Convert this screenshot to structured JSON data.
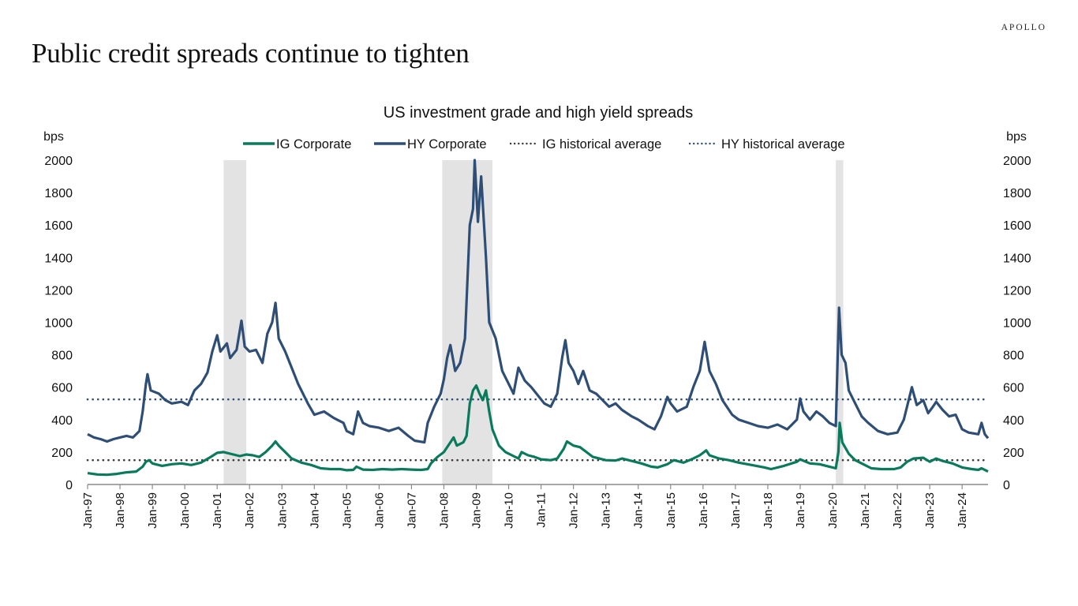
{
  "brand": "APOLLO",
  "page_title": "Public credit spreads continue to tighten",
  "chart_data": {
    "type": "line",
    "title": "US investment grade and high yield spreads",
    "ylabel_left": "bps",
    "ylabel_right": "bps",
    "xlabel": "",
    "ylim": [
      0,
      2000
    ],
    "yticks": [
      0,
      200,
      400,
      600,
      800,
      1000,
      1200,
      1400,
      1600,
      1800,
      2000
    ],
    "xlim": [
      1997.0,
      2024.8
    ],
    "xticks": [
      {
        "x": 1997,
        "label": "Jan-97"
      },
      {
        "x": 1998,
        "label": "Jan-98"
      },
      {
        "x": 1999,
        "label": "Jan-99"
      },
      {
        "x": 2000,
        "label": "Jan-00"
      },
      {
        "x": 2001,
        "label": "Jan-01"
      },
      {
        "x": 2002,
        "label": "Jan-02"
      },
      {
        "x": 2003,
        "label": "Jan-03"
      },
      {
        "x": 2004,
        "label": "Jan-04"
      },
      {
        "x": 2005,
        "label": "Jan-05"
      },
      {
        "x": 2006,
        "label": "Jan-06"
      },
      {
        "x": 2007,
        "label": "Jan-07"
      },
      {
        "x": 2008,
        "label": "Jan-08"
      },
      {
        "x": 2009,
        "label": "Jan-09"
      },
      {
        "x": 2010,
        "label": "Jan-10"
      },
      {
        "x": 2011,
        "label": "Jan-11"
      },
      {
        "x": 2012,
        "label": "Jan-12"
      },
      {
        "x": 2013,
        "label": "Jan-13"
      },
      {
        "x": 2014,
        "label": "Jan-14"
      },
      {
        "x": 2015,
        "label": "Jan-15"
      },
      {
        "x": 2016,
        "label": "Jan-16"
      },
      {
        "x": 2017,
        "label": "Jan-17"
      },
      {
        "x": 2018,
        "label": "Jan-18"
      },
      {
        "x": 2019,
        "label": "Jan-19"
      },
      {
        "x": 2020,
        "label": "Jan-20"
      },
      {
        "x": 2021,
        "label": "Jan-21"
      },
      {
        "x": 2022,
        "label": "Jan-22"
      },
      {
        "x": 2023,
        "label": "Jan-23"
      },
      {
        "x": 2024,
        "label": "Jan-24"
      }
    ],
    "grid": false,
    "legend_position": "top-center",
    "shaded_periods": [
      {
        "start": 2001.2,
        "end": 2001.9
      },
      {
        "start": 2007.95,
        "end": 2009.5
      },
      {
        "start": 2020.1,
        "end": 2020.33
      }
    ],
    "reference_lines": [
      {
        "name": "IG historical average",
        "value": 150,
        "color": "#3a3a3a"
      },
      {
        "name": "HY historical average",
        "value": 525,
        "color": "#2f4e75"
      }
    ],
    "series": [
      {
        "name": "IG Corporate",
        "color": "#0a7a5c",
        "points": [
          [
            1997.0,
            70
          ],
          [
            1997.3,
            62
          ],
          [
            1997.6,
            60
          ],
          [
            1997.9,
            65
          ],
          [
            1998.2,
            75
          ],
          [
            1998.5,
            80
          ],
          [
            1998.7,
            110
          ],
          [
            1998.8,
            140
          ],
          [
            1998.9,
            150
          ],
          [
            1999.0,
            130
          ],
          [
            1999.3,
            115
          ],
          [
            1999.6,
            125
          ],
          [
            1999.9,
            130
          ],
          [
            2000.2,
            120
          ],
          [
            2000.5,
            135
          ],
          [
            2000.8,
            170
          ],
          [
            2001.0,
            195
          ],
          [
            2001.2,
            200
          ],
          [
            2001.5,
            185
          ],
          [
            2001.7,
            175
          ],
          [
            2001.9,
            185
          ],
          [
            2002.1,
            180
          ],
          [
            2002.3,
            170
          ],
          [
            2002.5,
            200
          ],
          [
            2002.7,
            240
          ],
          [
            2002.8,
            265
          ],
          [
            2002.9,
            240
          ],
          [
            2003.1,
            200
          ],
          [
            2003.3,
            160
          ],
          [
            2003.6,
            135
          ],
          [
            2003.9,
            120
          ],
          [
            2004.2,
            100
          ],
          [
            2004.5,
            95
          ],
          [
            2004.8,
            95
          ],
          [
            2005.0,
            88
          ],
          [
            2005.2,
            90
          ],
          [
            2005.3,
            110
          ],
          [
            2005.5,
            92
          ],
          [
            2005.8,
            90
          ],
          [
            2006.1,
            95
          ],
          [
            2006.4,
            92
          ],
          [
            2006.7,
            95
          ],
          [
            2007.0,
            92
          ],
          [
            2007.3,
            90
          ],
          [
            2007.5,
            95
          ],
          [
            2007.6,
            130
          ],
          [
            2007.8,
            170
          ],
          [
            2008.0,
            200
          ],
          [
            2008.2,
            260
          ],
          [
            2008.3,
            290
          ],
          [
            2008.4,
            240
          ],
          [
            2008.6,
            260
          ],
          [
            2008.7,
            300
          ],
          [
            2008.8,
            500
          ],
          [
            2008.9,
            580
          ],
          [
            2009.0,
            610
          ],
          [
            2009.1,
            560
          ],
          [
            2009.2,
            520
          ],
          [
            2009.3,
            580
          ],
          [
            2009.4,
            450
          ],
          [
            2009.5,
            340
          ],
          [
            2009.7,
            240
          ],
          [
            2009.9,
            200
          ],
          [
            2010.1,
            180
          ],
          [
            2010.3,
            160
          ],
          [
            2010.4,
            200
          ],
          [
            2010.6,
            180
          ],
          [
            2010.8,
            170
          ],
          [
            2011.0,
            155
          ],
          [
            2011.3,
            150
          ],
          [
            2011.5,
            160
          ],
          [
            2011.7,
            220
          ],
          [
            2011.8,
            265
          ],
          [
            2012.0,
            240
          ],
          [
            2012.2,
            230
          ],
          [
            2012.4,
            200
          ],
          [
            2012.6,
            170
          ],
          [
            2012.8,
            160
          ],
          [
            2013.0,
            150
          ],
          [
            2013.3,
            148
          ],
          [
            2013.5,
            160
          ],
          [
            2013.8,
            145
          ],
          [
            2014.1,
            130
          ],
          [
            2014.4,
            110
          ],
          [
            2014.6,
            105
          ],
          [
            2014.9,
            125
          ],
          [
            2015.1,
            150
          ],
          [
            2015.4,
            135
          ],
          [
            2015.7,
            160
          ],
          [
            2015.9,
            180
          ],
          [
            2016.1,
            210
          ],
          [
            2016.2,
            180
          ],
          [
            2016.5,
            160
          ],
          [
            2016.8,
            150
          ],
          [
            2017.1,
            135
          ],
          [
            2017.5,
            120
          ],
          [
            2017.9,
            105
          ],
          [
            2018.1,
            95
          ],
          [
            2018.5,
            115
          ],
          [
            2018.9,
            140
          ],
          [
            2019.0,
            155
          ],
          [
            2019.3,
            130
          ],
          [
            2019.6,
            125
          ],
          [
            2019.9,
            110
          ],
          [
            2020.1,
            100
          ],
          [
            2020.18,
            200
          ],
          [
            2020.22,
            380
          ],
          [
            2020.3,
            260
          ],
          [
            2020.5,
            190
          ],
          [
            2020.7,
            150
          ],
          [
            2020.9,
            130
          ],
          [
            2021.2,
            100
          ],
          [
            2021.5,
            95
          ],
          [
            2021.9,
            95
          ],
          [
            2022.1,
            105
          ],
          [
            2022.3,
            140
          ],
          [
            2022.5,
            160
          ],
          [
            2022.8,
            165
          ],
          [
            2023.0,
            140
          ],
          [
            2023.2,
            160
          ],
          [
            2023.4,
            145
          ],
          [
            2023.7,
            130
          ],
          [
            2024.0,
            105
          ],
          [
            2024.3,
            95
          ],
          [
            2024.5,
            90
          ],
          [
            2024.6,
            100
          ],
          [
            2024.8,
            80
          ]
        ]
      },
      {
        "name": "HY Corporate",
        "color": "#2f4e75",
        "points": [
          [
            1997.0,
            310
          ],
          [
            1997.2,
            290
          ],
          [
            1997.4,
            280
          ],
          [
            1997.6,
            265
          ],
          [
            1997.8,
            280
          ],
          [
            1998.0,
            290
          ],
          [
            1998.2,
            300
          ],
          [
            1998.4,
            290
          ],
          [
            1998.6,
            330
          ],
          [
            1998.7,
            450
          ],
          [
            1998.8,
            620
          ],
          [
            1998.85,
            680
          ],
          [
            1998.95,
            580
          ],
          [
            1999.2,
            560
          ],
          [
            1999.4,
            520
          ],
          [
            1999.6,
            500
          ],
          [
            1999.9,
            510
          ],
          [
            2000.1,
            490
          ],
          [
            2000.3,
            580
          ],
          [
            2000.5,
            620
          ],
          [
            2000.7,
            690
          ],
          [
            2000.85,
            820
          ],
          [
            2001.0,
            920
          ],
          [
            2001.1,
            820
          ],
          [
            2001.3,
            870
          ],
          [
            2001.4,
            780
          ],
          [
            2001.6,
            830
          ],
          [
            2001.75,
            1010
          ],
          [
            2001.85,
            850
          ],
          [
            2002.0,
            820
          ],
          [
            2002.2,
            830
          ],
          [
            2002.4,
            750
          ],
          [
            2002.55,
            930
          ],
          [
            2002.7,
            1000
          ],
          [
            2002.8,
            1120
          ],
          [
            2002.9,
            900
          ],
          [
            2003.1,
            820
          ],
          [
            2003.3,
            720
          ],
          [
            2003.5,
            620
          ],
          [
            2003.8,
            500
          ],
          [
            2004.0,
            430
          ],
          [
            2004.3,
            450
          ],
          [
            2004.6,
            410
          ],
          [
            2004.9,
            380
          ],
          [
            2005.0,
            330
          ],
          [
            2005.2,
            310
          ],
          [
            2005.35,
            450
          ],
          [
            2005.5,
            380
          ],
          [
            2005.7,
            360
          ],
          [
            2006.0,
            350
          ],
          [
            2006.3,
            330
          ],
          [
            2006.6,
            350
          ],
          [
            2006.9,
            300
          ],
          [
            2007.1,
            270
          ],
          [
            2007.4,
            260
          ],
          [
            2007.5,
            380
          ],
          [
            2007.7,
            480
          ],
          [
            2007.9,
            560
          ],
          [
            2008.0,
            650
          ],
          [
            2008.1,
            780
          ],
          [
            2008.2,
            860
          ],
          [
            2008.35,
            700
          ],
          [
            2008.5,
            750
          ],
          [
            2008.65,
            900
          ],
          [
            2008.8,
            1600
          ],
          [
            2008.9,
            1700
          ],
          [
            2008.95,
            2000
          ],
          [
            2009.05,
            1620
          ],
          [
            2009.15,
            1900
          ],
          [
            2009.3,
            1400
          ],
          [
            2009.4,
            1000
          ],
          [
            2009.6,
            900
          ],
          [
            2009.8,
            700
          ],
          [
            2010.0,
            620
          ],
          [
            2010.15,
            560
          ],
          [
            2010.3,
            720
          ],
          [
            2010.5,
            640
          ],
          [
            2010.7,
            600
          ],
          [
            2010.9,
            550
          ],
          [
            2011.1,
            500
          ],
          [
            2011.3,
            480
          ],
          [
            2011.5,
            560
          ],
          [
            2011.65,
            780
          ],
          [
            2011.75,
            890
          ],
          [
            2011.85,
            750
          ],
          [
            2012.0,
            700
          ],
          [
            2012.15,
            620
          ],
          [
            2012.3,
            700
          ],
          [
            2012.5,
            580
          ],
          [
            2012.7,
            560
          ],
          [
            2012.9,
            520
          ],
          [
            2013.1,
            480
          ],
          [
            2013.3,
            500
          ],
          [
            2013.5,
            460
          ],
          [
            2013.8,
            420
          ],
          [
            2014.0,
            400
          ],
          [
            2014.3,
            360
          ],
          [
            2014.5,
            340
          ],
          [
            2014.7,
            420
          ],
          [
            2014.9,
            540
          ],
          [
            2015.0,
            500
          ],
          [
            2015.2,
            450
          ],
          [
            2015.5,
            480
          ],
          [
            2015.7,
            600
          ],
          [
            2015.9,
            700
          ],
          [
            2016.05,
            880
          ],
          [
            2016.2,
            700
          ],
          [
            2016.4,
            620
          ],
          [
            2016.6,
            520
          ],
          [
            2016.9,
            430
          ],
          [
            2017.1,
            400
          ],
          [
            2017.4,
            380
          ],
          [
            2017.7,
            360
          ],
          [
            2018.0,
            350
          ],
          [
            2018.3,
            370
          ],
          [
            2018.6,
            340
          ],
          [
            2018.9,
            400
          ],
          [
            2019.0,
            530
          ],
          [
            2019.1,
            450
          ],
          [
            2019.3,
            400
          ],
          [
            2019.5,
            450
          ],
          [
            2019.7,
            420
          ],
          [
            2019.9,
            380
          ],
          [
            2020.1,
            360
          ],
          [
            2020.2,
            1090
          ],
          [
            2020.28,
            800
          ],
          [
            2020.4,
            750
          ],
          [
            2020.5,
            580
          ],
          [
            2020.7,
            500
          ],
          [
            2020.9,
            420
          ],
          [
            2021.1,
            380
          ],
          [
            2021.4,
            330
          ],
          [
            2021.7,
            310
          ],
          [
            2022.0,
            320
          ],
          [
            2022.2,
            400
          ],
          [
            2022.45,
            600
          ],
          [
            2022.6,
            490
          ],
          [
            2022.8,
            520
          ],
          [
            2022.95,
            440
          ],
          [
            2023.1,
            480
          ],
          [
            2023.2,
            510
          ],
          [
            2023.4,
            460
          ],
          [
            2023.6,
            420
          ],
          [
            2023.8,
            430
          ],
          [
            2024.0,
            340
          ],
          [
            2024.2,
            320
          ],
          [
            2024.5,
            310
          ],
          [
            2024.6,
            380
          ],
          [
            2024.7,
            310
          ],
          [
            2024.8,
            285
          ]
        ]
      }
    ]
  }
}
